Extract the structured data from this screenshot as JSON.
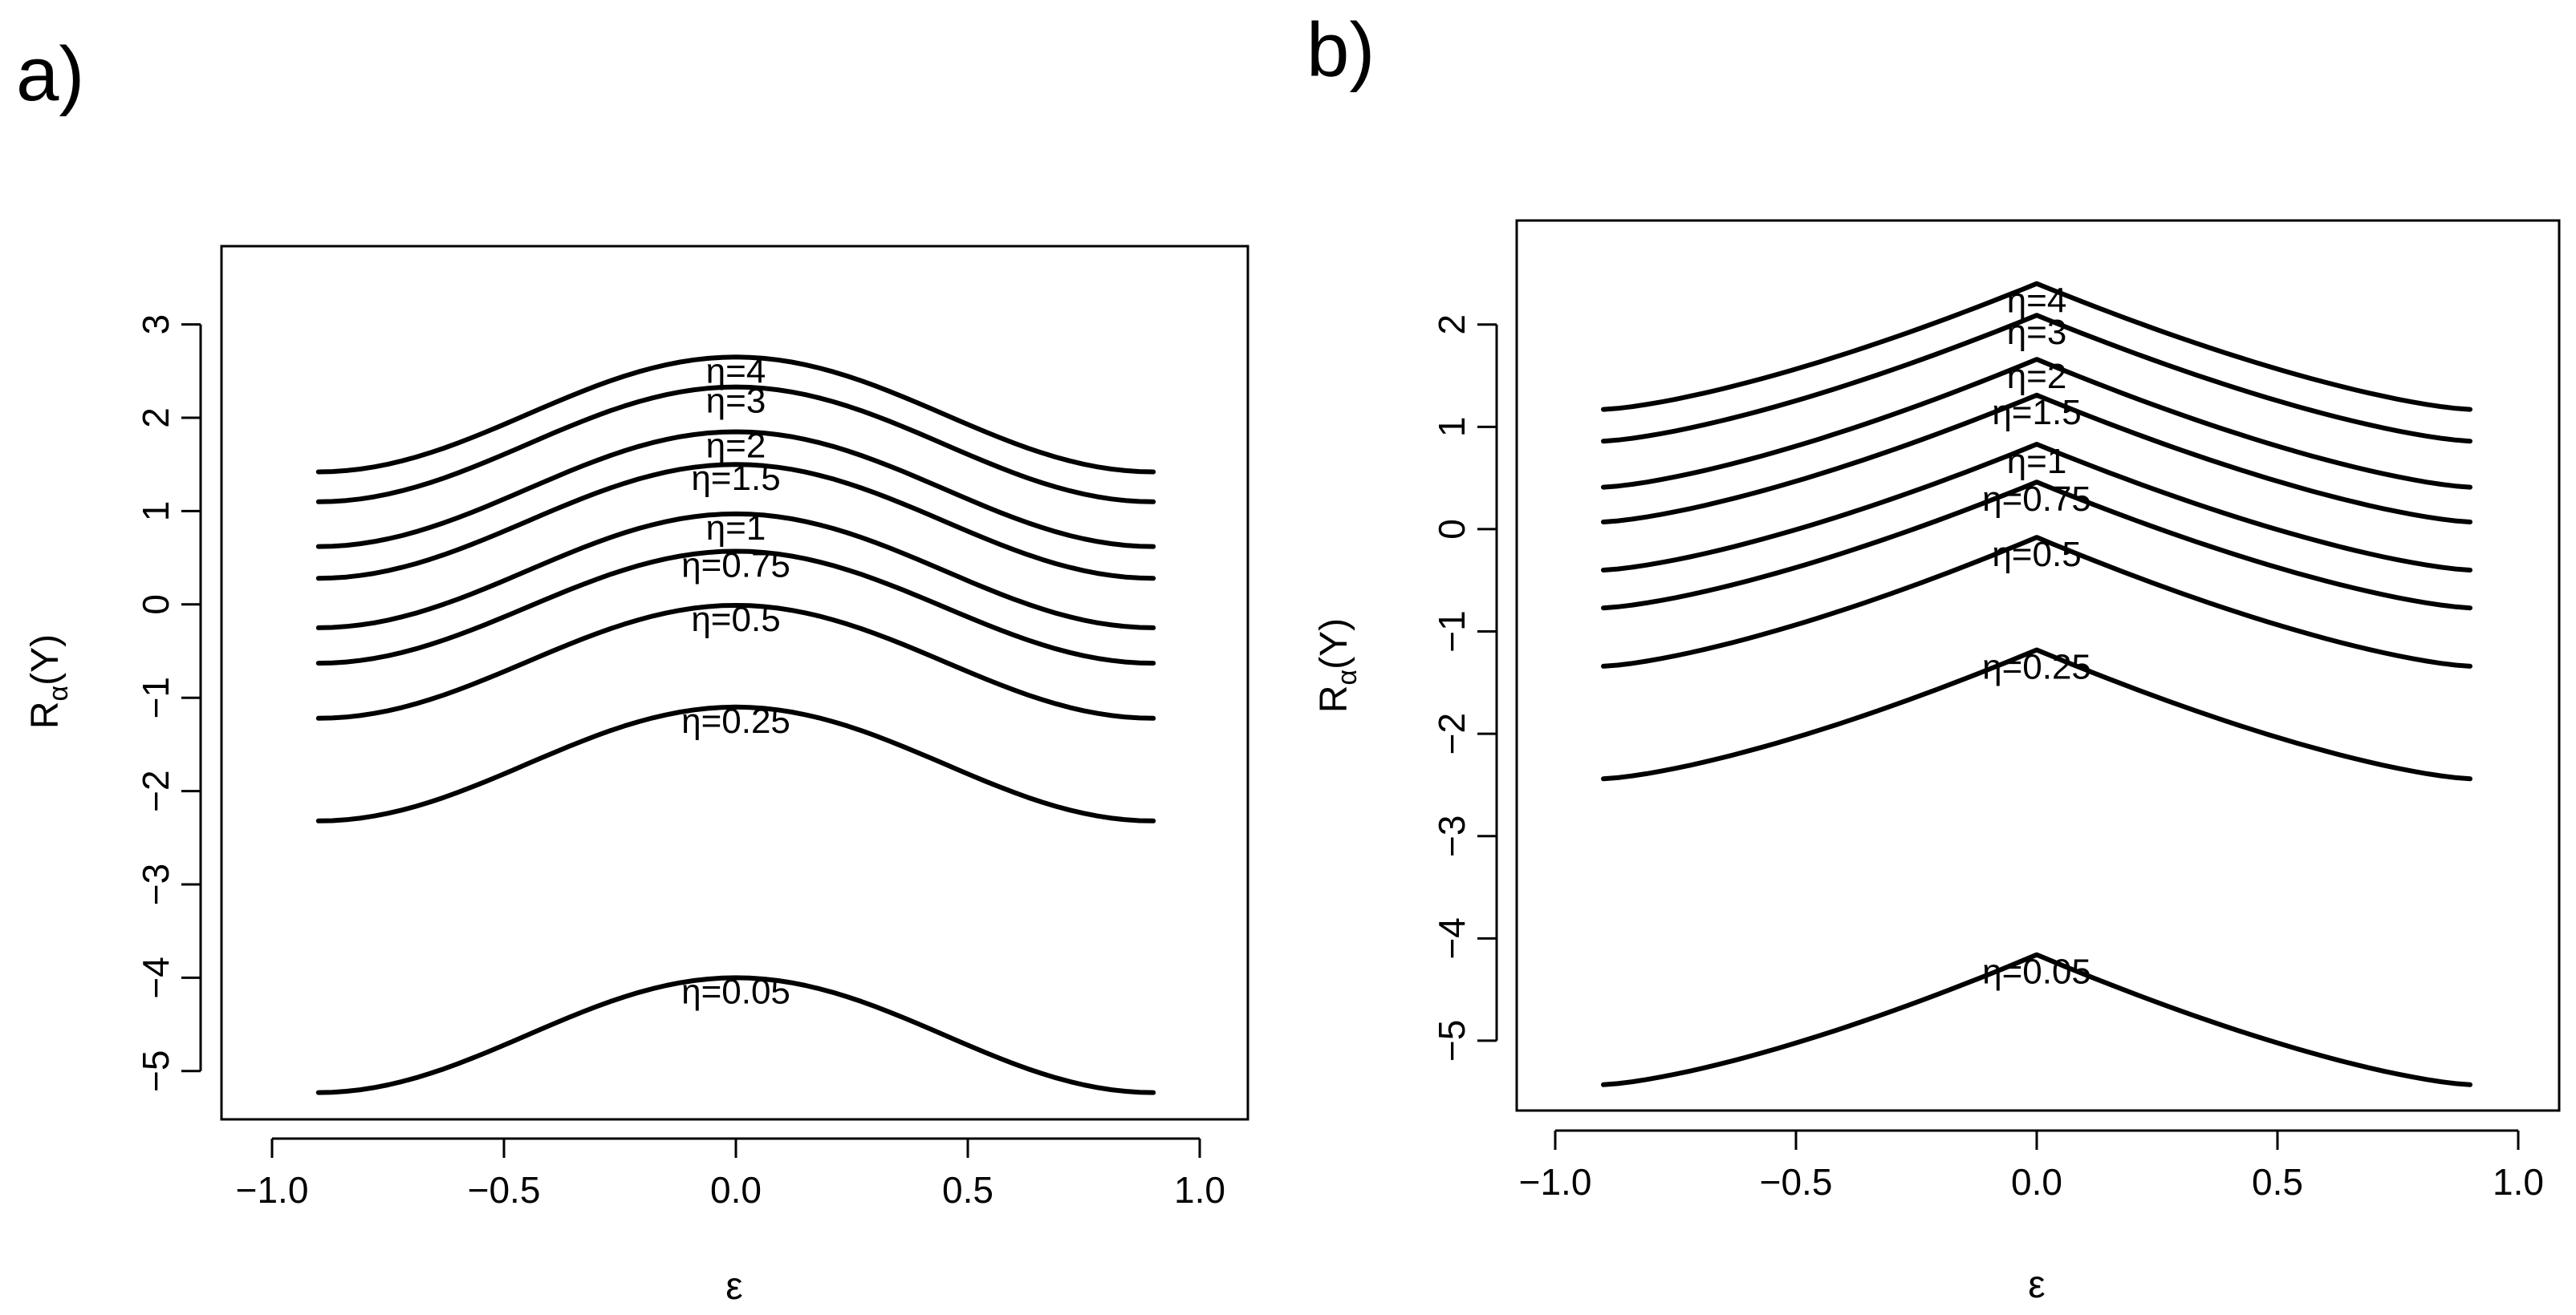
{
  "chart_data": [
    {
      "panel": "a)",
      "type": "line",
      "xlabel": "ε",
      "ylabel_main": "R",
      "ylabel_sub": "α",
      "ylabel_tail": "(Y)",
      "xlim": [
        -1.0,
        1.0
      ],
      "ylim": [
        -5.5,
        3.2
      ],
      "xticks": [
        -1.0,
        -0.5,
        0.0,
        0.5,
        1.0
      ],
      "xtick_labels": [
        "−1.0",
        "−0.5",
        "0.0",
        "0.5",
        "1.0"
      ],
      "yticks": [
        -5,
        -4,
        -3,
        -2,
        -1,
        0,
        1,
        2,
        3
      ],
      "ytick_labels": [
        "−5",
        "−4",
        "−3",
        "−2",
        "−1",
        "0",
        "1",
        "2",
        "3"
      ],
      "shape": "smooth",
      "series": [
        {
          "name": "η=4",
          "x": [
            -0.9,
            0.0,
            0.9
          ],
          "y": [
            1.42,
            2.65,
            1.42
          ]
        },
        {
          "name": "η=3",
          "x": [
            -0.9,
            0.0,
            0.9
          ],
          "y": [
            1.1,
            2.33,
            1.1
          ]
        },
        {
          "name": "η=2",
          "x": [
            -0.9,
            0.0,
            0.9
          ],
          "y": [
            0.62,
            1.85,
            0.62
          ]
        },
        {
          "name": "η=1.5",
          "x": [
            -0.9,
            0.0,
            0.9
          ],
          "y": [
            0.28,
            1.5,
            0.28
          ]
        },
        {
          "name": "η=1",
          "x": [
            -0.9,
            0.0,
            0.9
          ],
          "y": [
            -0.25,
            0.97,
            -0.25
          ]
        },
        {
          "name": "η=0.75",
          "x": [
            -0.9,
            0.0,
            0.9
          ],
          "y": [
            -0.63,
            0.57,
            -0.63
          ]
        },
        {
          "name": "η=0.5",
          "x": [
            -0.9,
            0.0,
            0.9
          ],
          "y": [
            -1.22,
            -0.01,
            -1.22
          ]
        },
        {
          "name": "η=0.25",
          "x": [
            -0.9,
            0.0,
            0.9
          ],
          "y": [
            -2.32,
            -1.1,
            -2.32
          ]
        },
        {
          "name": "η=0.05",
          "x": [
            -0.9,
            0.0,
            0.9
          ],
          "y": [
            -5.23,
            -4.0,
            -5.23
          ]
        }
      ]
    },
    {
      "panel": "b)",
      "type": "line",
      "xlabel": "ε",
      "ylabel_main": "R",
      "ylabel_sub": "α",
      "ylabel_tail": "(Y)",
      "xlim": [
        -1.0,
        1.0
      ],
      "ylim": [
        -5.8,
        2.8
      ],
      "xticks": [
        -1.0,
        -0.5,
        0.0,
        0.5,
        1.0
      ],
      "xtick_labels": [
        "−1.0",
        "−0.5",
        "0.0",
        "0.5",
        "1.0"
      ],
      "yticks": [
        -5,
        -4,
        -3,
        -2,
        -1,
        0,
        1,
        2
      ],
      "ytick_labels": [
        "−5",
        "−4",
        "−3",
        "−2",
        "−1",
        "0",
        "1",
        "2"
      ],
      "shape": "cusp",
      "series": [
        {
          "name": "η=4",
          "x": [
            -0.9,
            0.0,
            0.9
          ],
          "y": [
            1.17,
            2.4,
            1.17
          ]
        },
        {
          "name": "η=3",
          "x": [
            -0.9,
            0.0,
            0.9
          ],
          "y": [
            0.86,
            2.09,
            0.86
          ]
        },
        {
          "name": "η=2",
          "x": [
            -0.9,
            0.0,
            0.9
          ],
          "y": [
            0.41,
            1.66,
            0.41
          ]
        },
        {
          "name": "η=1.5",
          "x": [
            -0.9,
            0.0,
            0.9
          ],
          "y": [
            0.07,
            1.31,
            0.07
          ]
        },
        {
          "name": "η=1",
          "x": [
            -0.9,
            0.0,
            0.9
          ],
          "y": [
            -0.4,
            0.83,
            -0.4
          ]
        },
        {
          "name": "η=0.75",
          "x": [
            -0.9,
            0.0,
            0.9
          ],
          "y": [
            -0.77,
            0.46,
            -0.77
          ]
        },
        {
          "name": "η=0.5",
          "x": [
            -0.9,
            0.0,
            0.9
          ],
          "y": [
            -1.34,
            -0.08,
            -1.34
          ]
        },
        {
          "name": "η=0.25",
          "x": [
            -0.9,
            0.0,
            0.9
          ],
          "y": [
            -2.44,
            -1.18,
            -2.44
          ]
        },
        {
          "name": "η=0.05",
          "x": [
            -0.9,
            0.0,
            0.9
          ],
          "y": [
            -5.43,
            -4.16,
            -5.43
          ]
        }
      ]
    }
  ]
}
